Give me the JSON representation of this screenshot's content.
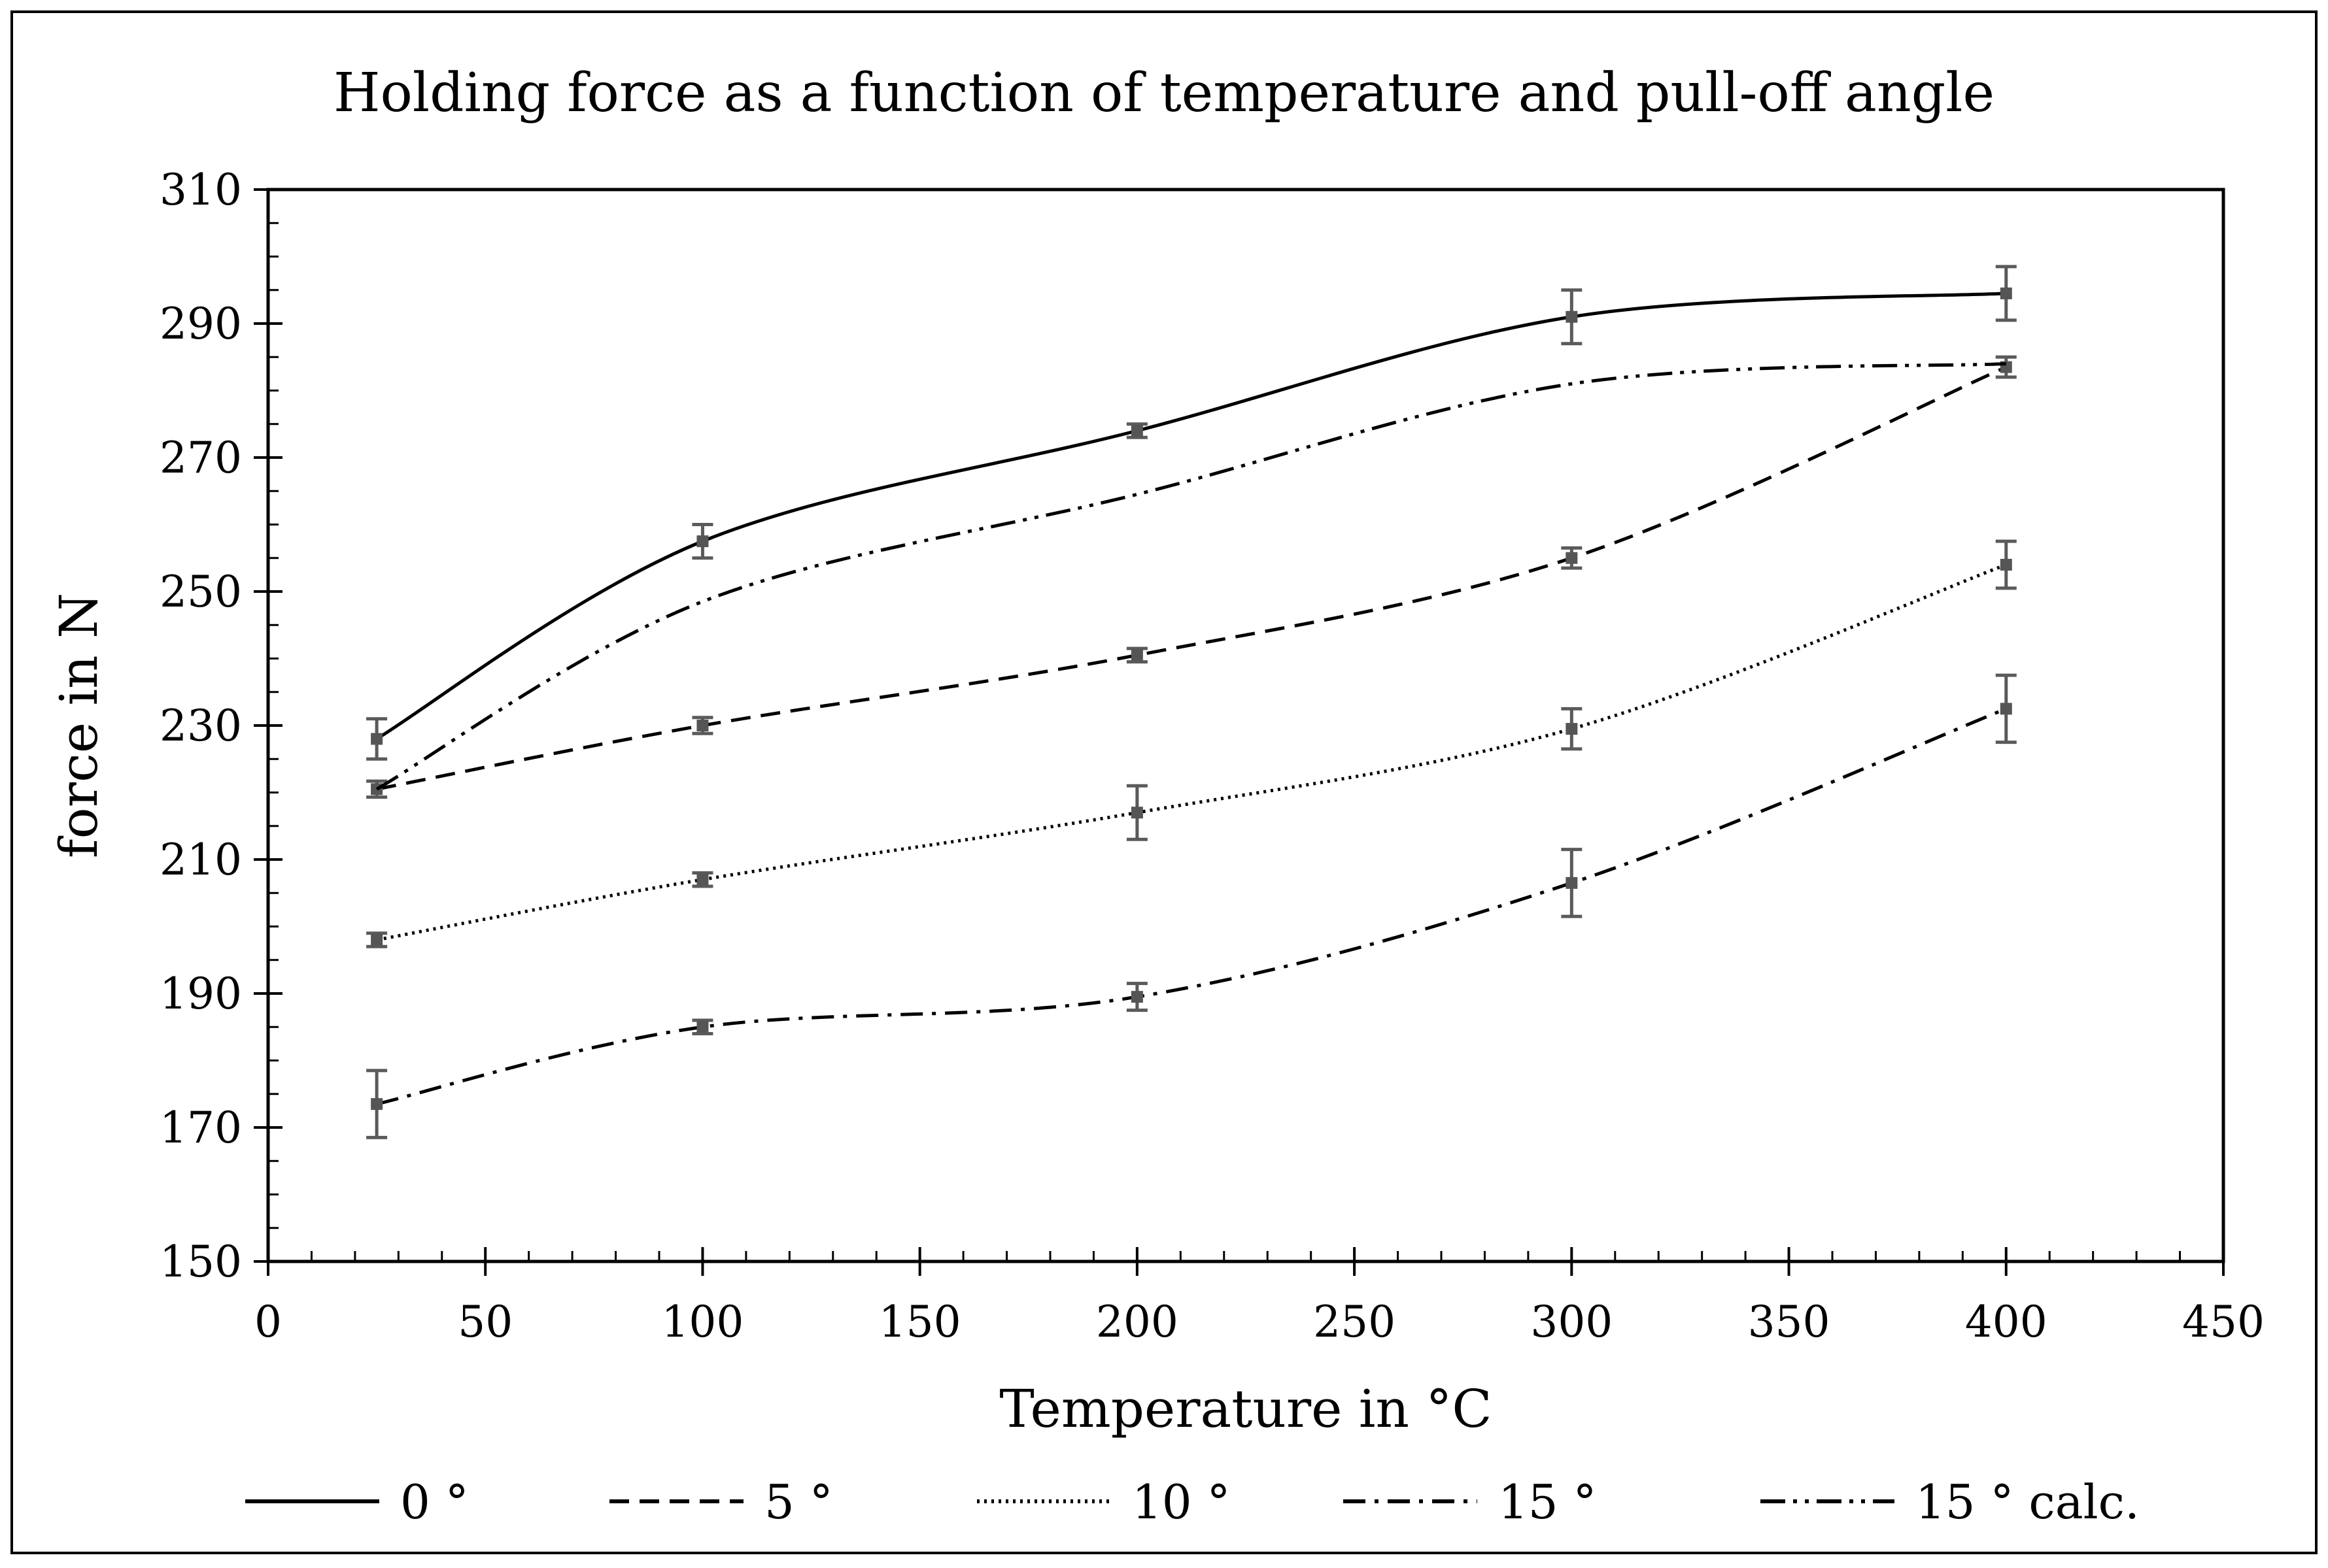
{
  "chart_data": {
    "type": "line",
    "title": "Holding force as a function of temperature and pull-off angle",
    "xlabel": "Temperature in °C",
    "ylabel": "force in N",
    "xlim": [
      0,
      450
    ],
    "ylim": [
      150,
      310
    ],
    "xticks": [
      0,
      50,
      100,
      150,
      200,
      250,
      300,
      350,
      400,
      450
    ],
    "yticks": [
      150,
      170,
      190,
      210,
      230,
      250,
      270,
      290,
      310
    ],
    "x_minor_step": 10,
    "y_minor_step": 5,
    "grid": false,
    "legend_position": "bottom",
    "x": [
      25,
      100,
      200,
      300,
      400
    ],
    "series": [
      {
        "name": "0 °",
        "dash": "solid",
        "values": [
          228,
          257.5,
          274,
          291,
          294.5
        ],
        "errors": [
          3,
          2.5,
          1,
          4,
          4
        ],
        "markers": true
      },
      {
        "name": "5 °",
        "dash": "dashed",
        "values": [
          220.5,
          230,
          240.5,
          255,
          283.5
        ],
        "errors": [
          1.2,
          1.2,
          1,
          1.5,
          1.5
        ],
        "markers": true
      },
      {
        "name": "10 °",
        "dash": "dotted",
        "values": [
          198,
          207,
          217,
          229.5,
          254
        ],
        "errors": [
          1,
          1,
          4,
          3,
          3.5
        ],
        "markers": true
      },
      {
        "name": "15 °",
        "dash": "dashdot",
        "values": [
          173.5,
          185,
          189.5,
          206.5,
          232.5
        ],
        "errors": [
          5,
          1,
          2,
          5,
          5
        ],
        "markers": true
      },
      {
        "name": "15 ° calc.",
        "dash": "dashdotdot",
        "values": [
          220.5,
          248.5,
          264.5,
          281,
          284
        ],
        "errors": [],
        "markers": false
      }
    ]
  }
}
